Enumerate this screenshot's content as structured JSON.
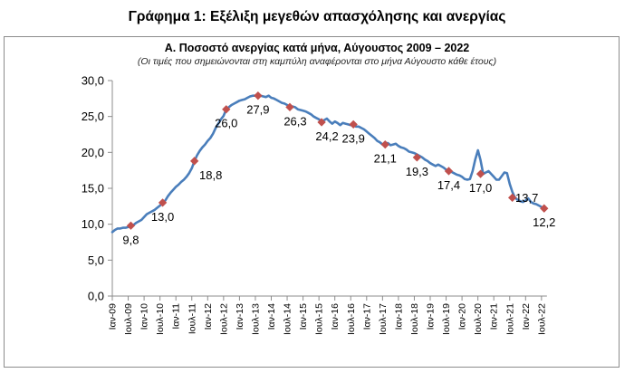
{
  "figure_title": "Γράφημα 1: Εξέλιξη μεγεθών απασχόλησης και ανεργίας",
  "chart_data": {
    "type": "line",
    "title": "Α. Ποσοστό ανεργίας κατά μήνα, Αύγουστος 2009 – 2022",
    "subtitle": "(Οι τιμές που σημειώνονται στη καμπύλη αναφέρονται στο μήνα Αύγουστο κάθε έτους)",
    "xlabel": "",
    "ylabel": "",
    "ylim": [
      0,
      30
    ],
    "yticks": [
      "0,0",
      "5,0",
      "10,0",
      "15,0",
      "20,0",
      "25,0",
      "30,0"
    ],
    "grid": false,
    "xticks": [
      "Ιαν-09",
      "Ιουλ-09",
      "Ιαν-10",
      "Ιουλ-10",
      "Ιαν-11",
      "Ιουλ-11",
      "Ιαν-12",
      "Ιουλ-12",
      "Ιαν-13",
      "Ιουλ-13",
      "Ιαν-14",
      "Ιουλ-14",
      "Ιαν-15",
      "Ιουλ-15",
      "Ιαν-16",
      "Ιουλ-16",
      "Ιαν-17",
      "Ιουλ-17",
      "Ιαν-18",
      "Ιουλ-18",
      "Ιαν-19",
      "Ιουλ-19",
      "Ιαν-20",
      "Ιουλ-20",
      "Ιαν-21",
      "Ιουλ-21",
      "Ιαν-22",
      "Ιουλ-22"
    ],
    "line_color": "#4a7ebb",
    "marker_color": "#c0504d",
    "series": [
      {
        "values": [
          8.9,
          9.2,
          9.4,
          9.4,
          9.5,
          9.5,
          9.6,
          9.8,
          9.9,
          10.2,
          10.4,
          10.6,
          11.0,
          11.4,
          11.6,
          11.8,
          12.0,
          12.3,
          12.6,
          13.0,
          13.3,
          13.9,
          14.4,
          14.8,
          15.2,
          15.5,
          15.9,
          16.2,
          16.6,
          17.1,
          17.8,
          18.8,
          19.6,
          20.2,
          20.7,
          21.1,
          21.6,
          22.0,
          22.6,
          23.4,
          24.0,
          24.6,
          25.1,
          26.0,
          26.3,
          26.6,
          26.8,
          27.0,
          27.2,
          27.3,
          27.4,
          27.6,
          27.8,
          27.9,
          27.9,
          28.0,
          27.9,
          27.8,
          27.7,
          27.9,
          27.6,
          27.5,
          27.3,
          27.1,
          26.9,
          26.8,
          26.6,
          26.3,
          26.4,
          26.3,
          26.0,
          25.9,
          25.8,
          25.7,
          25.5,
          25.3,
          25.0,
          24.8,
          24.6,
          24.2,
          24.5,
          24.7,
          24.3,
          24.0,
          24.3,
          24.1,
          23.8,
          24.1,
          24.0,
          23.9,
          23.8,
          23.8,
          23.6,
          23.6,
          23.4,
          23.2,
          22.9,
          22.6,
          22.3,
          22.0,
          21.6,
          21.4,
          21.1,
          21.2,
          21.3,
          21.0,
          21.1,
          21.2,
          20.9,
          20.7,
          20.6,
          20.4,
          20.1,
          20.0,
          19.9,
          19.7,
          19.5,
          19.3,
          19.0,
          18.8,
          18.5,
          18.3,
          18.1,
          18.3,
          18.1,
          17.9,
          17.6,
          17.4,
          17.3,
          17.1,
          16.9,
          16.8,
          16.6,
          16.3,
          16.2,
          16.3,
          17.4,
          19.0,
          20.3,
          18.9,
          17.0,
          17.2,
          17.4,
          17.0,
          16.6,
          16.2,
          16.2,
          16.7,
          17.2,
          17.1,
          15.6,
          14.5,
          13.7,
          13.4,
          13.2,
          13.1,
          13.3,
          13.6,
          13.1,
          12.9,
          12.8,
          12.6,
          12.4,
          12.2
        ]
      }
    ],
    "points": [
      {
        "label": "9,8",
        "value": 9.8
      },
      {
        "label": "13,0",
        "value": 13.0
      },
      {
        "label": "18,8",
        "value": 18.8
      },
      {
        "label": "26,0",
        "value": 26.0
      },
      {
        "label": "27,9",
        "value": 27.9
      },
      {
        "label": "26,3",
        "value": 26.3
      },
      {
        "label": "24,2",
        "value": 24.2
      },
      {
        "label": "23,9",
        "value": 23.9
      },
      {
        "label": "21,1",
        "value": 21.1
      },
      {
        "label": "19,3",
        "value": 19.3
      },
      {
        "label": "17,4",
        "value": 17.4
      },
      {
        "label": "17,0",
        "value": 17.0
      },
      {
        "label": "13,7",
        "value": 13.7
      },
      {
        "label": "12,2",
        "value": 12.2
      }
    ]
  }
}
